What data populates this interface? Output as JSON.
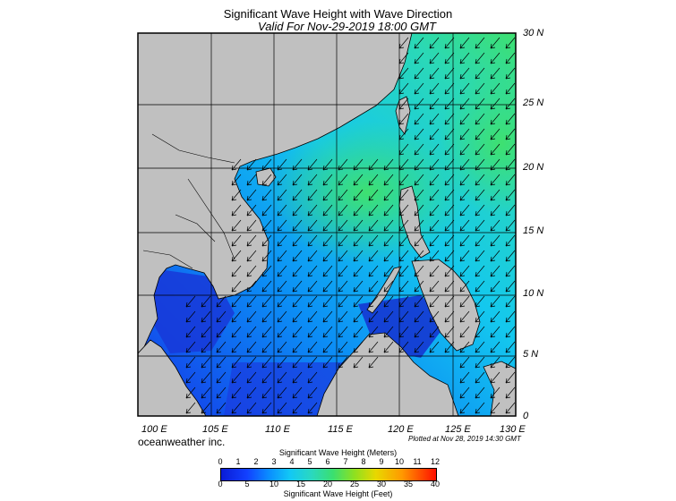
{
  "title": "Significant Wave Height with Wave Direction",
  "subtitle": "Valid For Nov-29-2019 18:00 GMT",
  "credit": "oceanweather inc.",
  "plotted": "Plotted at Nov 28, 2019 14:30 GMT",
  "x_ticks": [
    "100 E",
    "105 E",
    "110 E",
    "115 E",
    "120 E",
    "125 E",
    "130 E"
  ],
  "y_ticks": [
    "30 N",
    "25 N",
    "20 N",
    "15 N",
    "10 N",
    "5 N",
    "0"
  ],
  "colorbar": {
    "title_meters": "Significant Wave Height (Meters)",
    "title_feet": "Significant Wave Height (Feet)",
    "meters_ticks": [
      "0",
      "1",
      "2",
      "3",
      "4",
      "5",
      "6",
      "7",
      "8",
      "9",
      "10",
      "11",
      "12"
    ],
    "feet_ticks": [
      "0",
      "5",
      "10",
      "15",
      "20",
      "25",
      "30",
      "35",
      "40"
    ]
  },
  "colors": {
    "land": "#c0c0c0",
    "low_wave": "#1240ff",
    "mid_wave": "#12c8f5",
    "high_wave": "#3adf70"
  },
  "arrow_direction": "southwest"
}
